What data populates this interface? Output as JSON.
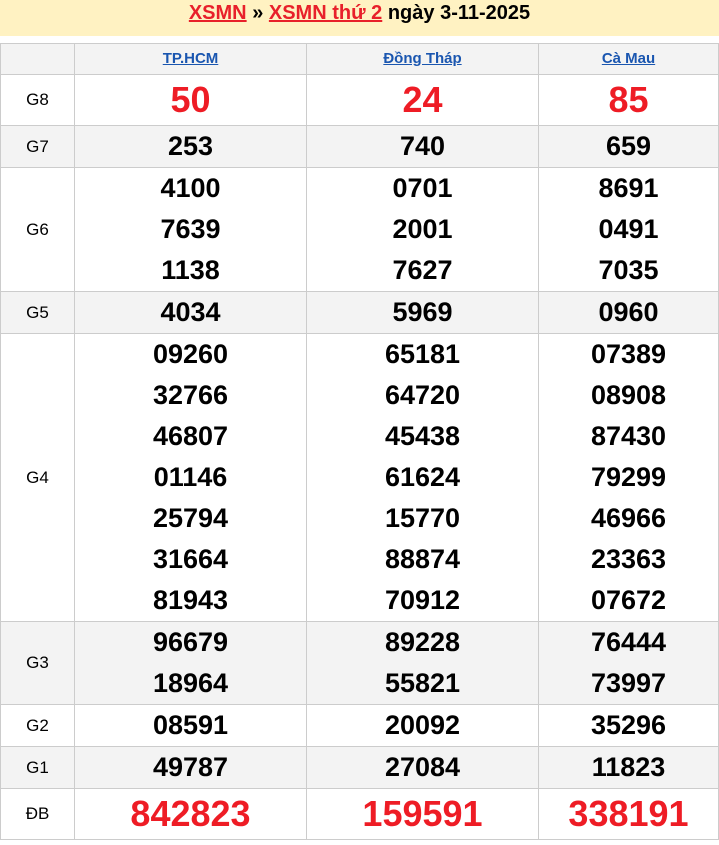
{
  "header": {
    "link1": "XSMN",
    "sep": "»",
    "link2": "XSMN thứ 2",
    "date_text": "ngày 3-11-2025"
  },
  "columns": [
    "TP.HCM",
    "Đồng Tháp",
    "Cà Mau"
  ],
  "colors": {
    "accent_red": "#ee1c25",
    "link_blue": "#1a56b0",
    "title_bg": "#fff2c2"
  },
  "rows": [
    {
      "label": "G8",
      "red": true,
      "values": [
        [
          "50"
        ],
        [
          "24"
        ],
        [
          "85"
        ]
      ]
    },
    {
      "label": "G7",
      "values": [
        [
          "253"
        ],
        [
          "740"
        ],
        [
          "659"
        ]
      ]
    },
    {
      "label": "G6",
      "values": [
        [
          "4100",
          "7639",
          "1138"
        ],
        [
          "0701",
          "2001",
          "7627"
        ],
        [
          "8691",
          "0491",
          "7035"
        ]
      ]
    },
    {
      "label": "G5",
      "values": [
        [
          "4034"
        ],
        [
          "5969"
        ],
        [
          "0960"
        ]
      ]
    },
    {
      "label": "G4",
      "values": [
        [
          "09260",
          "32766",
          "46807",
          "01146",
          "25794",
          "31664",
          "81943"
        ],
        [
          "65181",
          "64720",
          "45438",
          "61624",
          "15770",
          "88874",
          "70912"
        ],
        [
          "07389",
          "08908",
          "87430",
          "79299",
          "46966",
          "23363",
          "07672"
        ]
      ]
    },
    {
      "label": "G3",
      "values": [
        [
          "96679",
          "18964"
        ],
        [
          "89228",
          "55821"
        ],
        [
          "76444",
          "73997"
        ]
      ]
    },
    {
      "label": "G2",
      "values": [
        [
          "08591"
        ],
        [
          "20092"
        ],
        [
          "35296"
        ]
      ]
    },
    {
      "label": "G1",
      "values": [
        [
          "49787"
        ],
        [
          "27084"
        ],
        [
          "11823"
        ]
      ]
    },
    {
      "label": "ĐB",
      "red": true,
      "values": [
        [
          "842823"
        ],
        [
          "159591"
        ],
        [
          "338191"
        ]
      ]
    }
  ]
}
